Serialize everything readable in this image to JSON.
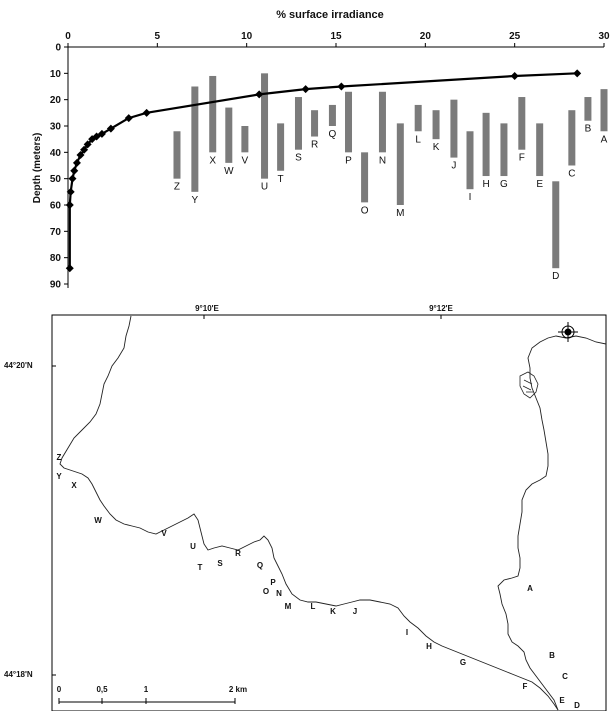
{
  "chart_data": {
    "type": "bar",
    "xlabel": "% surface irradiance",
    "ylabel": "Depth (meters)",
    "xlim": [
      0,
      30
    ],
    "ylim": [
      0,
      90
    ],
    "xticks": [
      0,
      5,
      10,
      15,
      20,
      25,
      30
    ],
    "yticks": [
      0,
      10,
      20,
      30,
      40,
      50,
      60,
      70,
      80,
      90
    ],
    "orientation": "depth ranges by site",
    "curve": {
      "points": [
        {
          "x": 0.1,
          "y": 84
        },
        {
          "x": 0.1,
          "y": 60
        },
        {
          "x": 0.15,
          "y": 55
        },
        {
          "x": 0.25,
          "y": 50
        },
        {
          "x": 0.35,
          "y": 47
        },
        {
          "x": 0.5,
          "y": 44
        },
        {
          "x": 0.7,
          "y": 41
        },
        {
          "x": 0.9,
          "y": 39
        },
        {
          "x": 1.1,
          "y": 37
        },
        {
          "x": 1.35,
          "y": 35
        },
        {
          "x": 1.6,
          "y": 34
        },
        {
          "x": 1.9,
          "y": 33
        },
        {
          "x": 2.4,
          "y": 31
        },
        {
          "x": 3.4,
          "y": 27
        },
        {
          "x": 4.4,
          "y": 25
        },
        {
          "x": 10.7,
          "y": 18
        },
        {
          "x": 13.3,
          "y": 16
        },
        {
          "x": 15.3,
          "y": 15
        },
        {
          "x": 25.0,
          "y": 11
        },
        {
          "x": 28.5,
          "y": 10
        }
      ]
    },
    "bars": [
      {
        "site": "Z",
        "x": 6.1,
        "top": 32,
        "bottom": 50
      },
      {
        "site": "Y",
        "x": 7.1,
        "top": 15,
        "bottom": 55
      },
      {
        "site": "X",
        "x": 8.1,
        "top": 11,
        "bottom": 40
      },
      {
        "site": "W",
        "x": 9.0,
        "top": 23,
        "bottom": 44
      },
      {
        "site": "V",
        "x": 9.9,
        "top": 30,
        "bottom": 40
      },
      {
        "site": "U",
        "x": 11.0,
        "top": 10,
        "bottom": 50
      },
      {
        "site": "T",
        "x": 11.9,
        "top": 29,
        "bottom": 47
      },
      {
        "site": "S",
        "x": 12.9,
        "top": 19,
        "bottom": 39
      },
      {
        "site": "R",
        "x": 13.8,
        "top": 24,
        "bottom": 34
      },
      {
        "site": "Q",
        "x": 14.8,
        "top": 22,
        "bottom": 30
      },
      {
        "site": "P",
        "x": 15.7,
        "top": 17,
        "bottom": 40
      },
      {
        "site": "O",
        "x": 16.6,
        "top": 40,
        "bottom": 59
      },
      {
        "site": "N",
        "x": 17.6,
        "top": 17,
        "bottom": 40
      },
      {
        "site": "M",
        "x": 18.6,
        "top": 29,
        "bottom": 60
      },
      {
        "site": "L",
        "x": 19.6,
        "top": 22,
        "bottom": 32
      },
      {
        "site": "K",
        "x": 20.6,
        "top": 24,
        "bottom": 35
      },
      {
        "site": "J",
        "x": 21.6,
        "top": 20,
        "bottom": 42
      },
      {
        "site": "I",
        "x": 22.5,
        "top": 32,
        "bottom": 54
      },
      {
        "site": "H",
        "x": 23.4,
        "top": 25,
        "bottom": 49
      },
      {
        "site": "G",
        "x": 24.4,
        "top": 29,
        "bottom": 49
      },
      {
        "site": "F",
        "x": 25.4,
        "top": 19,
        "bottom": 39
      },
      {
        "site": "E",
        "x": 26.4,
        "top": 29,
        "bottom": 49
      },
      {
        "site": "D",
        "x": 27.3,
        "top": 51,
        "bottom": 84
      },
      {
        "site": "C",
        "x": 28.2,
        "top": 24,
        "bottom": 45
      },
      {
        "site": "B",
        "x": 29.1,
        "top": 19,
        "bottom": 28
      },
      {
        "site": "A",
        "x": 30.0,
        "top": 16,
        "bottom": 32
      }
    ]
  },
  "map": {
    "lon_labels": [
      "9°10'E",
      "9°12'E"
    ],
    "lat_labels": [
      "44°20'N",
      "44°18'N"
    ],
    "scale_labels": [
      "0",
      "0,5",
      "1",
      "2 km"
    ],
    "site_labels": [
      "Z",
      "Y",
      "X",
      "W",
      "V",
      "U",
      "T",
      "S",
      "R",
      "Q",
      "P",
      "O",
      "N",
      "M",
      "L",
      "K",
      "J",
      "I",
      "H",
      "G",
      "F",
      "E",
      "D",
      "C",
      "B",
      "A"
    ],
    "compass_icon": "compass-rose-icon"
  }
}
